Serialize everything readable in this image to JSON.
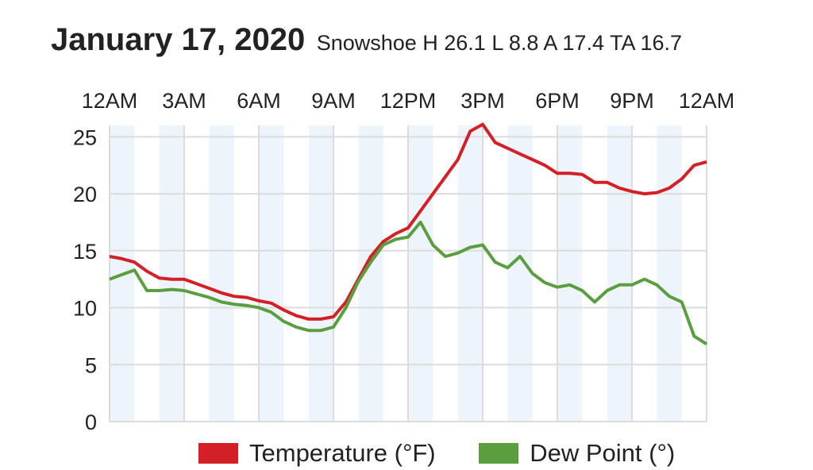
{
  "header": {
    "date": "January 17, 2020",
    "summary": "Snowshoe H 26.1 L 8.8 A 17.4 TA 16.7"
  },
  "colors": {
    "temperature": "#d32026",
    "dew_point": "#5a9e3f",
    "band": "#eef4fb",
    "grid": "#dcdcdc"
  },
  "chart_data": {
    "type": "line",
    "title": "",
    "x_tick_labels": [
      "12AM",
      "3AM",
      "6AM",
      "9AM",
      "12PM",
      "3PM",
      "6PM",
      "9PM",
      "12AM"
    ],
    "y_tick_labels": [
      "0",
      "5",
      "10",
      "15",
      "20",
      "25"
    ],
    "xlim": [
      0,
      24
    ],
    "ylim": [
      0,
      26
    ],
    "x_unit": "hours since midnight",
    "grid": true,
    "legend_position": "bottom",
    "series": [
      {
        "name": "Temperature (°F)",
        "x": [
          0,
          0.5,
          1,
          1.5,
          2,
          2.5,
          3,
          3.5,
          4,
          4.5,
          5,
          5.5,
          6,
          6.5,
          7,
          7.5,
          8,
          8.5,
          9,
          9.5,
          10,
          10.5,
          11,
          11.5,
          12,
          12.5,
          13,
          13.5,
          14,
          14.5,
          15,
          15.5,
          16,
          16.5,
          17,
          17.5,
          18,
          18.5,
          19,
          19.5,
          20,
          20.5,
          21,
          21.5,
          22,
          22.5,
          23,
          23.5,
          24
        ],
        "values": [
          14.5,
          14.3,
          14.0,
          13.2,
          12.6,
          12.5,
          12.5,
          12.1,
          11.7,
          11.3,
          11.0,
          10.9,
          10.6,
          10.4,
          9.8,
          9.3,
          9.0,
          9.0,
          9.2,
          10.5,
          12.5,
          14.5,
          15.8,
          16.5,
          17.0,
          18.5,
          20.0,
          21.5,
          23.0,
          25.5,
          26.1,
          24.5,
          24.0,
          23.5,
          23.0,
          22.5,
          21.8,
          21.8,
          21.7,
          21.0,
          21.0,
          20.5,
          20.2,
          20.0,
          20.1,
          20.5,
          21.3,
          22.5,
          22.8
        ]
      },
      {
        "name": "Dew Point (°)",
        "x": [
          0,
          0.5,
          1,
          1.5,
          2,
          2.5,
          3,
          3.5,
          4,
          4.5,
          5,
          5.5,
          6,
          6.5,
          7,
          7.5,
          8,
          8.5,
          9,
          9.5,
          10,
          10.5,
          11,
          11.5,
          12,
          12.5,
          13,
          13.5,
          14,
          14.5,
          15,
          15.5,
          16,
          16.5,
          17,
          17.5,
          18,
          18.5,
          19,
          19.5,
          20,
          20.5,
          21,
          21.5,
          22,
          22.5,
          23,
          23.5,
          24
        ],
        "values": [
          12.5,
          12.9,
          13.3,
          11.5,
          11.5,
          11.6,
          11.5,
          11.2,
          10.9,
          10.5,
          10.3,
          10.2,
          10.0,
          9.6,
          8.8,
          8.3,
          8.0,
          8.0,
          8.3,
          10.0,
          12.3,
          14.0,
          15.5,
          16.0,
          16.2,
          17.5,
          15.5,
          14.5,
          14.8,
          15.3,
          15.5,
          14.0,
          13.5,
          14.5,
          13.0,
          12.2,
          11.8,
          12.0,
          11.5,
          10.5,
          11.5,
          12.0,
          12.0,
          12.5,
          12.0,
          11.0,
          10.5,
          7.5,
          6.8
        ]
      }
    ]
  },
  "legend": {
    "temperature": "Temperature (°F)",
    "dew_point": "Dew Point (°)"
  }
}
